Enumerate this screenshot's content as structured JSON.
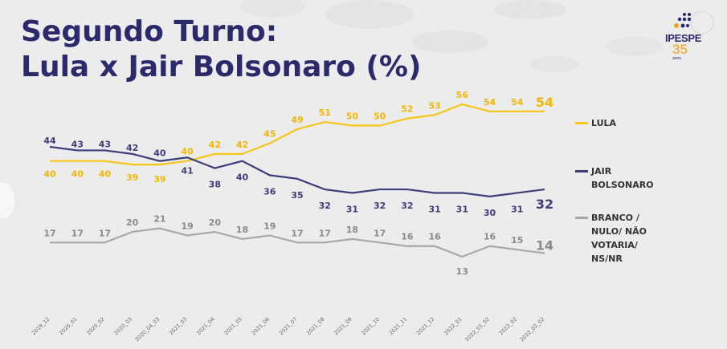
{
  "title_line1": "Segundo Turno:",
  "title_line2": "Lula x Jair Bolsonaro (%)",
  "logo": {
    "name": "IPESPE",
    "anniversary": "35",
    "anniversary_sub": "anos"
  },
  "chart_data": {
    "type": "line",
    "title": "Segundo Turno: Lula x Jair Bolsonaro (%)",
    "categories": [
      "2019_12",
      "2020_01",
      "2020_02",
      "2020_03",
      "2020_04_03",
      "2021_03",
      "2021_04",
      "2021_05",
      "2021_06",
      "2021_07",
      "2021_08",
      "2021_09",
      "2021_10",
      "2021_11",
      "2021_12",
      "2022_01",
      "2022_01_02",
      "2022_02",
      "2022_02_02"
    ],
    "series": [
      {
        "name": "LULA",
        "color": "#f5c518",
        "values": [
          40,
          40,
          40,
          39,
          39,
          40,
          42,
          42,
          45,
          49,
          51,
          50,
          50,
          52,
          53,
          56,
          54,
          54,
          54
        ]
      },
      {
        "name": "JAIR BOLSONARO",
        "color": "#3d3d7a",
        "values": [
          44,
          43,
          43,
          42,
          40,
          41,
          38,
          40,
          36,
          35,
          32,
          31,
          32,
          32,
          31,
          31,
          30,
          31,
          32
        ]
      },
      {
        "name": "BRANCO / NULO/ NÃO VOTARIA/ NS/NR",
        "color": "#a8a8a8",
        "values": [
          17,
          17,
          17,
          20,
          21,
          19,
          20,
          18,
          19,
          17,
          17,
          18,
          17,
          16,
          16,
          13,
          16,
          15,
          14
        ]
      }
    ],
    "grid": false,
    "legend": "right"
  }
}
